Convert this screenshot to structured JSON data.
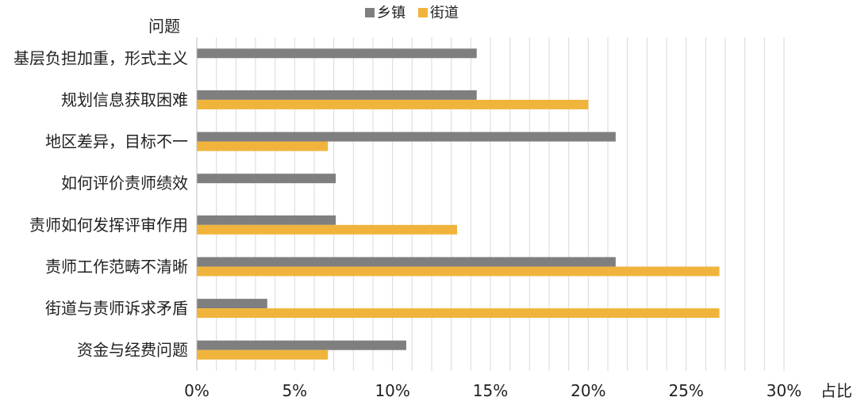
{
  "chart_data": {
    "type": "bar",
    "orientation": "horizontal",
    "categories": [
      "基层负担加重，形式主义",
      "规划信息获取困难",
      "地区差异，目标不一",
      "如何评价责师绩效",
      "责师如何发挥评审作用",
      "责师工作范畴不清晰",
      "街道与责师诉求矛盾",
      "资金与经费问题"
    ],
    "series": [
      {
        "name": "乡镇",
        "color": "#7f7f7f",
        "values": [
          14.3,
          14.3,
          21.4,
          7.1,
          7.1,
          21.4,
          3.6,
          10.7
        ]
      },
      {
        "name": "街道",
        "color": "#f0b43c",
        "values": [
          0,
          20.0,
          6.7,
          0,
          13.3,
          26.7,
          26.7,
          6.7
        ]
      }
    ],
    "xlim": [
      0,
      30
    ],
    "xticks": [
      "0%",
      "5%",
      "10%",
      "15%",
      "20%",
      "25%",
      "30%"
    ],
    "xtick_values": [
      0,
      5,
      10,
      15,
      20,
      25,
      30
    ],
    "xlabel": "占比",
    "ylabel": "问题",
    "grid": true,
    "legend_position": "top-center"
  }
}
